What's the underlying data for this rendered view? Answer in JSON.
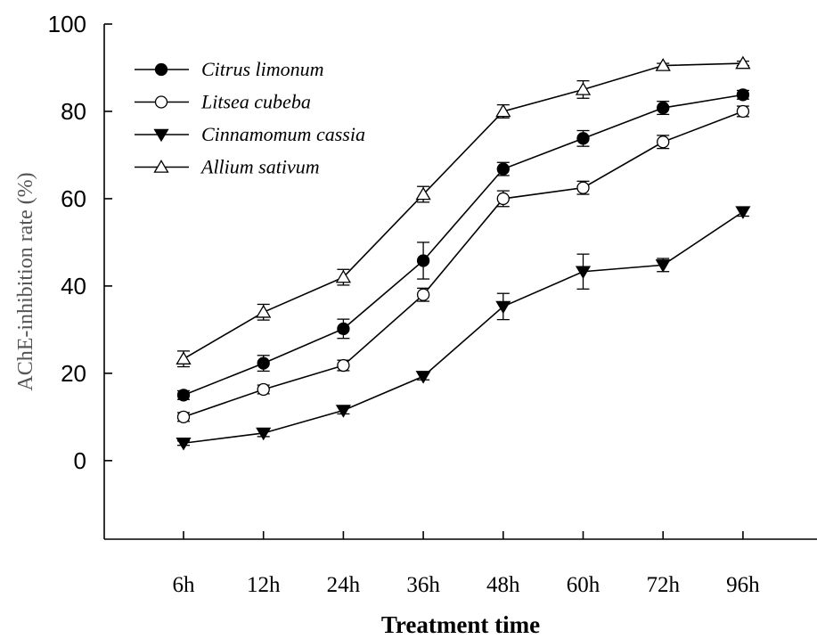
{
  "chart_data": {
    "type": "line",
    "xlabel": "Treatment time",
    "ylabel": "AChE-inhibition rate (%)",
    "categories": [
      "6h",
      "12h",
      "24h",
      "36h",
      "48h",
      "60h",
      "72h",
      "96h"
    ],
    "ylim": [
      -18,
      100
    ],
    "yticks": [
      "0",
      "20",
      "40",
      "60",
      "80",
      "100"
    ],
    "yticks_values": [
      0,
      20,
      40,
      60,
      80,
      100
    ],
    "grid": false,
    "legend_position": "top-left",
    "series": [
      {
        "name": "Citrus limonum",
        "marker": "circle-filled",
        "values": [
          15,
          22.3,
          30.2,
          45.8,
          66.8,
          73.8,
          80.8,
          83.8
        ],
        "errors": [
          1.0,
          1.8,
          2.2,
          4.2,
          1.5,
          1.8,
          1.5,
          1.0
        ]
      },
      {
        "name": "Litsea cubeba",
        "marker": "circle-open",
        "values": [
          10,
          16.3,
          21.8,
          38,
          60,
          62.5,
          73,
          80
        ],
        "errors": [
          1.0,
          1.0,
          1.2,
          1.5,
          1.8,
          1.5,
          1.5,
          1.2
        ]
      },
      {
        "name": "Cinnamomum cassia",
        "marker": "triangle-down-filled",
        "values": [
          4,
          6.3,
          11.5,
          19.3,
          35.3,
          43.3,
          44.8,
          57
        ],
        "errors": [
          0.5,
          0.8,
          0.8,
          0.8,
          3.0,
          4.0,
          1.5,
          1.0
        ]
      },
      {
        "name": "Allium sativum",
        "marker": "triangle-up-open",
        "values": [
          23.3,
          34,
          42,
          61,
          80,
          85,
          90.5,
          91
        ],
        "errors": [
          1.8,
          1.8,
          1.8,
          1.8,
          1.5,
          2.0,
          0.5,
          0.5
        ]
      }
    ]
  }
}
